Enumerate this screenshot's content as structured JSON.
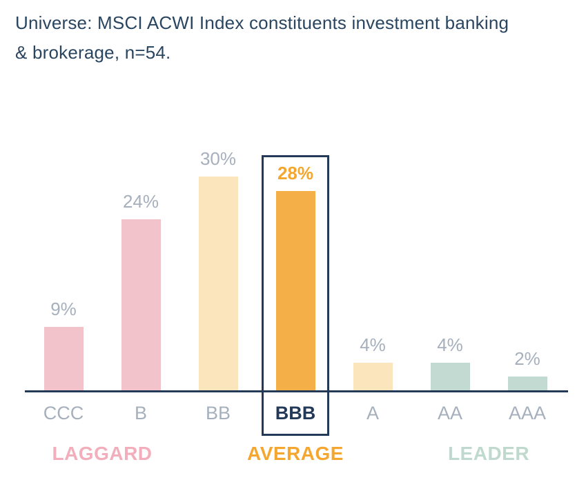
{
  "title": {
    "lines": [
      "Universe: MSCI ACWI Index constituents investment banking",
      "& brokerage, n=54."
    ]
  },
  "colors": {
    "navy": "#223A57",
    "grey_label": "#A6B0BD",
    "pink_bar": "#F2C3CB",
    "cream_bar": "#FBE5BD",
    "orange_bar": "#F5AF49",
    "teal_bar": "#C3DAD2",
    "laggard_text": "#F3AEBC",
    "average_text": "#F5A62F",
    "leader_text": "#BFD9CE"
  },
  "chart_data": {
    "type": "bar",
    "title": "Universe: MSCI ACWI Index constituents investment banking & brokerage, n=54.",
    "categories": [
      "CCC",
      "B",
      "BB",
      "BBB",
      "A",
      "AA",
      "AAA"
    ],
    "values": [
      9,
      24,
      30,
      28,
      4,
      4,
      2
    ],
    "unit": "%",
    "xlabel": "",
    "ylabel": "",
    "ylim": [
      0,
      32
    ],
    "grid": false,
    "legend": "none",
    "bar_colors": [
      "#F2C3CB",
      "#F2C3CB",
      "#FBE5BD",
      "#F5AF49",
      "#FBE5BD",
      "#C3DAD2",
      "#C3DAD2"
    ],
    "value_label_colors": [
      "#A6B0BD",
      "#A6B0BD",
      "#A6B0BD",
      "#F5A62F",
      "#A6B0BD",
      "#A6B0BD",
      "#A6B0BD"
    ],
    "highlighted_category": "BBB",
    "groups": [
      {
        "label": "LAGGARD",
        "color": "#F3AEBC",
        "bar_indices": [
          0,
          1
        ]
      },
      {
        "label": "AVERAGE",
        "color": "#F5A62F",
        "bar_indices": [
          3
        ]
      },
      {
        "label": "LEADER",
        "color": "#BFD9CE",
        "bar_indices": [
          5,
          6
        ]
      }
    ]
  }
}
